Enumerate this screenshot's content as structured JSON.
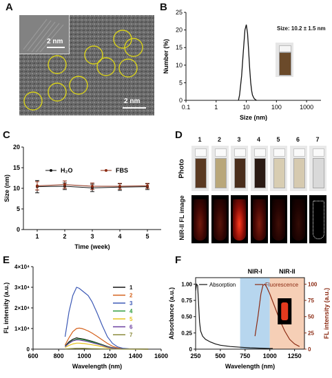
{
  "panels": {
    "A": "A",
    "B": "B",
    "C": "C",
    "D": "D",
    "E": "E",
    "F": "F"
  },
  "panelA": {
    "inset_scale": "2 nm",
    "main_scale": "2 nm",
    "circle_color": "#d9d21a"
  },
  "panelB": {
    "annotation": "Size: 10.2 ± 1.5 nm",
    "chart_data": {
      "type": "line",
      "xlabel": "Size (nm)",
      "ylabel": "Number (%)",
      "x_scale": "log",
      "xlim": [
        0.1,
        3000
      ],
      "ylim": [
        0,
        25
      ],
      "xticks": [
        "0.1",
        "1",
        "10",
        "100",
        "1000"
      ],
      "yticks": [
        "0",
        "5",
        "10",
        "15",
        "20",
        "25"
      ],
      "series": [
        {
          "x": [
            5.5,
            6,
            7,
            8,
            9,
            10,
            11,
            12,
            13,
            14,
            15,
            16,
            18,
            20,
            22
          ],
          "y": [
            0,
            1.5,
            7,
            14,
            20,
            21.5,
            19,
            14,
            9,
            5,
            2.8,
            1.5,
            0.6,
            0.2,
            0
          ]
        }
      ]
    }
  },
  "panelC": {
    "chart_data": {
      "type": "line",
      "xlabel": "Time (week)",
      "ylabel": "Size (nm)",
      "xlim": [
        0.5,
        5.5
      ],
      "ylim": [
        0,
        20
      ],
      "xticks": [
        "1",
        "2",
        "3",
        "4",
        "5"
      ],
      "yticks": [
        "0",
        "5",
        "10",
        "15",
        "20"
      ],
      "categories": [
        1,
        2,
        3,
        4,
        5
      ],
      "series": [
        {
          "name": "H₂O",
          "color": "#111111",
          "values": [
            10.4,
            10.5,
            10.1,
            10.3,
            10.4
          ],
          "errors": [
            1.5,
            0.8,
            0.9,
            0.8,
            0.7
          ]
        },
        {
          "name": "FBS",
          "color": "#8b2a12",
          "values": [
            10.6,
            10.9,
            10.5,
            10.5,
            10.6
          ],
          "errors": [
            1.0,
            0.9,
            0.8,
            0.7,
            0.6
          ]
        }
      ]
    }
  },
  "panelD": {
    "row_labels": [
      "Photo",
      "NIR-II FL image"
    ],
    "numbers": [
      "1",
      "2",
      "3",
      "4",
      "5",
      "6",
      "7"
    ],
    "vial_colors": [
      "#5b3a22",
      "#b9a77a",
      "#4a2e1c",
      "#2a1a14",
      "#d8cdb2",
      "#d6cab0",
      "#d9d9d9"
    ],
    "fl_intensity": [
      0.45,
      0.35,
      1.0,
      0.5,
      0.25,
      0.2,
      0.0
    ]
  },
  "panelE": {
    "chart_data": {
      "type": "line",
      "xlabel": "Wavelength (nm)",
      "ylabel": "FL intensity (a.u.)",
      "xlim": [
        600,
        1600
      ],
      "ylim": [
        0,
        40000
      ],
      "xticks": [
        "600",
        "800",
        "1000",
        "1200",
        "1400",
        "1600"
      ],
      "yticks": [
        "0",
        "1×10⁴",
        "2×10⁴",
        "3×10⁴",
        "4×10⁴"
      ],
      "x": [
        850,
        880,
        910,
        940,
        960,
        980,
        1000,
        1030,
        1060,
        1100,
        1140,
        1180,
        1220,
        1260,
        1300,
        1350,
        1400,
        1450,
        1500
      ],
      "series": [
        {
          "name": "1",
          "color": "#111111",
          "values": [
            1500,
            3500,
            4800,
            5500,
            5200,
            5000,
            4800,
            4300,
            3800,
            3000,
            2200,
            1300,
            700,
            300,
            150,
            80,
            40,
            20,
            0
          ]
        },
        {
          "name": "2",
          "color": "#d4601a",
          "values": [
            2000,
            5500,
            8500,
            10000,
            10200,
            10000,
            9600,
            8800,
            7800,
            6200,
            4500,
            2800,
            1400,
            600,
            250,
            100,
            50,
            20,
            0
          ]
        },
        {
          "name": "3",
          "color": "#3b58b5",
          "values": [
            6000,
            18000,
            26000,
            30000,
            29500,
            28500,
            27500,
            26000,
            23000,
            17500,
            11500,
            6000,
            2800,
            1100,
            450,
            180,
            80,
            30,
            0
          ]
        },
        {
          "name": "4",
          "color": "#2e9a3a",
          "values": [
            1300,
            3000,
            4200,
            4900,
            4900,
            4700,
            4500,
            4000,
            3500,
            2800,
            2000,
            1200,
            600,
            250,
            100,
            50,
            20,
            10,
            0
          ]
        },
        {
          "name": "5",
          "color": "#e6c21a",
          "values": [
            800,
            1800,
            2500,
            2900,
            2900,
            2800,
            2700,
            2400,
            2100,
            1700,
            1200,
            700,
            350,
            150,
            60,
            30,
            10,
            0,
            0
          ]
        },
        {
          "name": "6",
          "color": "#6a3fa0",
          "values": [
            1200,
            2800,
            4000,
            4500,
            4400,
            4200,
            4000,
            3600,
            3100,
            2500,
            1800,
            1000,
            500,
            200,
            80,
            40,
            20,
            0,
            0
          ]
        },
        {
          "name": "7",
          "color": "#8a8a3a",
          "values": [
            100,
            200,
            300,
            400,
            400,
            380,
            350,
            300,
            250,
            200,
            150,
            100,
            50,
            20,
            10,
            0,
            0,
            0,
            0
          ]
        }
      ]
    }
  },
  "panelF": {
    "region_labels": [
      "NIR-I",
      "NIR-II"
    ],
    "region_colors": [
      "#b7d6ee",
      "#f6cfb6"
    ],
    "chart_data": {
      "type": "line",
      "xlabel": "Wavelength (nm)",
      "ylabel": "Absorbance (a.u.)",
      "ylabel_right": "FL intensity (a.u.)",
      "xlim": [
        250,
        1350
      ],
      "ylim": [
        0,
        1.1
      ],
      "ylim_right": [
        0,
        110
      ],
      "xticks": [
        "250",
        "500",
        "750",
        "1000",
        "1250"
      ],
      "yticks": [
        "0",
        "0.25",
        "0.50",
        "0.75",
        "1.00"
      ],
      "yticks_right": [
        "0",
        "25",
        "50",
        "75",
        "100"
      ],
      "regions": [
        [
          700,
          1000
        ],
        [
          1000,
          1350
        ]
      ],
      "series": [
        {
          "name": "Absorption",
          "color": "#111111",
          "x": [
            250,
            260,
            270,
            280,
            290,
            300,
            320,
            350,
            400,
            450,
            500,
            600,
            700,
            800,
            900,
            1000,
            1030
          ],
          "y": [
            0.9,
            1.0,
            0.98,
            0.7,
            0.42,
            0.28,
            0.2,
            0.15,
            0.11,
            0.08,
            0.06,
            0.04,
            0.03,
            0.02,
            0.015,
            0.01,
            0.01
          ]
        },
        {
          "name": "Fluorescence",
          "color": "#8b2a12",
          "x": [
            850,
            880,
            910,
            930,
            950,
            970,
            1000,
            1050,
            1100,
            1150,
            1200,
            1250,
            1300
          ],
          "y": [
            20,
            50,
            85,
            98,
            100,
            95,
            85,
            65,
            45,
            28,
            15,
            8,
            4
          ]
        }
      ]
    }
  }
}
